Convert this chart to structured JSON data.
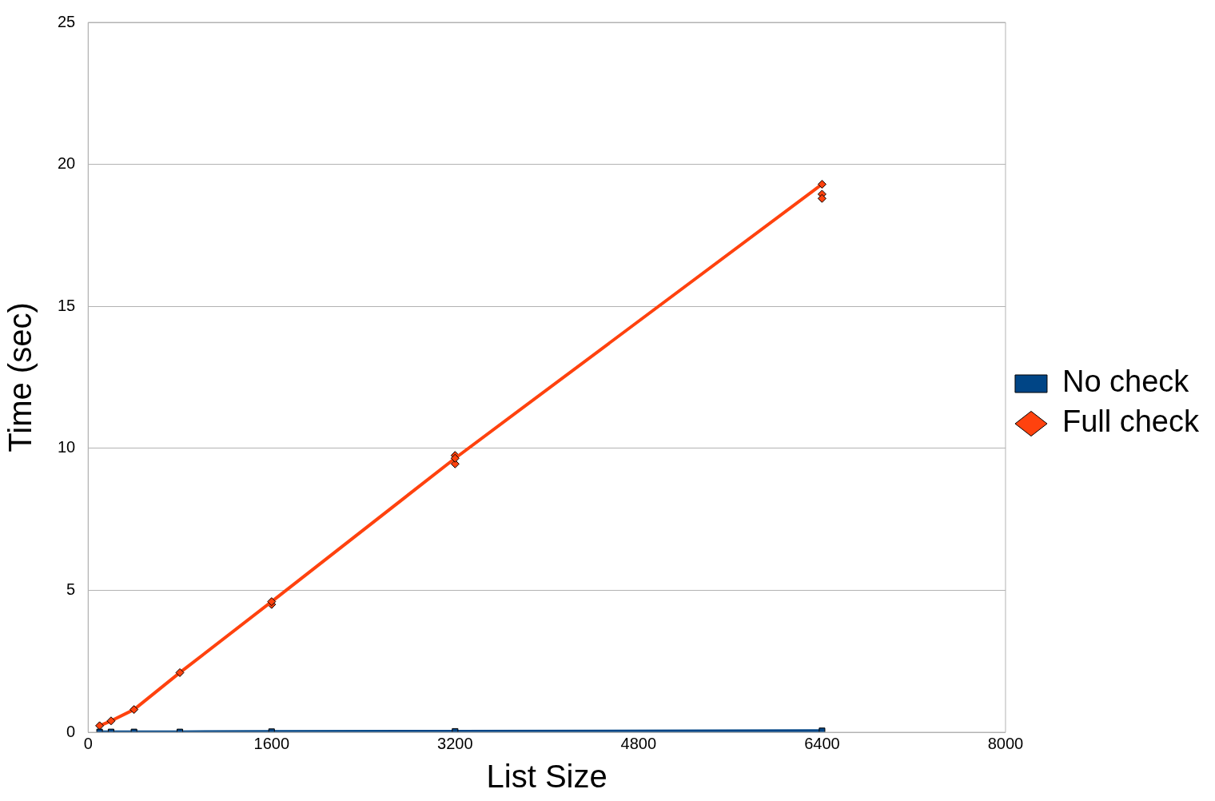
{
  "chart_data": {
    "type": "line",
    "xlabel": "List Size",
    "ylabel": "Time (sec)",
    "xlim": [
      0,
      8000
    ],
    "xticks": [
      0,
      1600,
      3200,
      4800,
      6400,
      8000
    ],
    "ylim": [
      0,
      25
    ],
    "yticks": [
      0,
      5,
      10,
      15,
      20,
      25
    ],
    "grid": "y",
    "legend": "right",
    "series": [
      {
        "name": "No check",
        "color": "#004586",
        "marker": "square",
        "x": [
          100,
          200,
          400,
          800,
          1600,
          3200,
          6400
        ],
        "values": [
          0.01,
          0.01,
          0.01,
          0.01,
          0.02,
          0.03,
          0.05
        ]
      },
      {
        "name": "Full check",
        "color": "#ff420e",
        "marker": "diamond",
        "x": [
          100,
          200,
          400,
          800,
          1600,
          3200,
          6400
        ],
        "values": [
          0.23,
          0.4,
          0.8,
          2.1,
          4.6,
          9.65,
          19.3
        ]
      },
      {
        "type": "scatter",
        "color": "#ff420e",
        "marker": "diamond",
        "x": [
          1600,
          3200,
          3200,
          6400,
          6400
        ],
        "values": [
          4.5,
          9.45,
          9.75,
          18.95,
          18.8
        ]
      }
    ]
  }
}
